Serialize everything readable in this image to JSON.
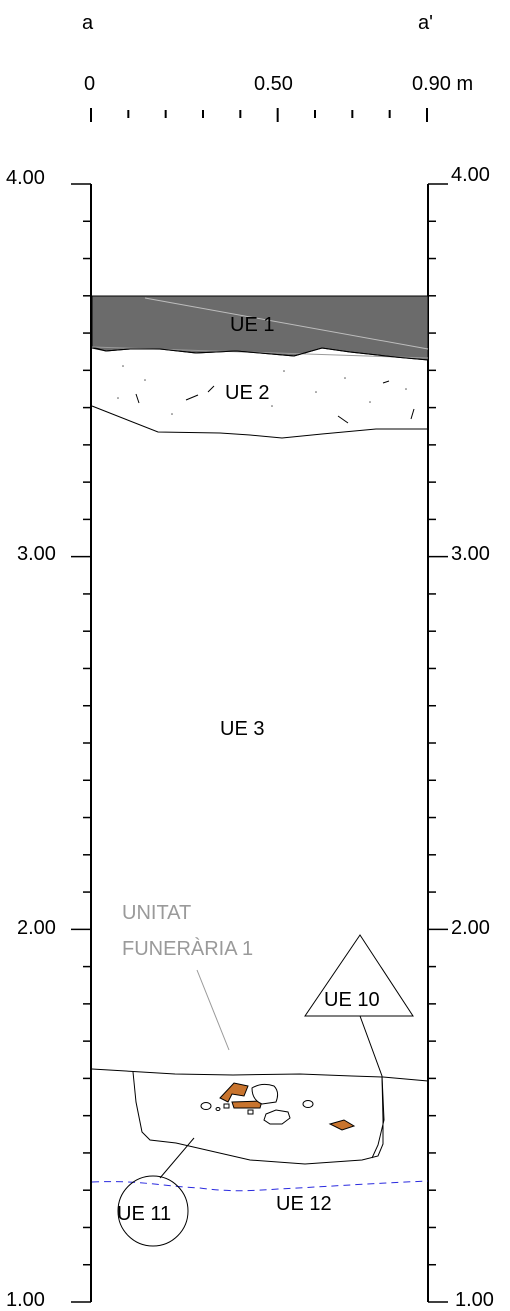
{
  "profile": {
    "start_label": "a",
    "end_label": "a'",
    "scale": {
      "tick_0": "0",
      "tick_mid": "0.50",
      "tick_end": "0.90 m"
    },
    "elevations": {
      "left": [
        "4.00",
        "3.00",
        "2.00",
        "1.00"
      ],
      "right": [
        "4.00",
        "3.00",
        "2.00",
        "1.00"
      ]
    }
  },
  "units": {
    "ue1": "UE 1",
    "ue2": "UE 2",
    "ue3": "UE 3",
    "ue10": "UE 10",
    "ue11": "UE 11",
    "ue12": "UE 12",
    "funerary_line1": "UNITAT",
    "funerary_line2": "FUNERÀRIA 1"
  },
  "colors": {
    "ue1_fill": "#6b6b6b",
    "bone_fill": "#c8742e",
    "water_line": "#2a2adf",
    "annotation_grey": "#9a9a9a"
  }
}
